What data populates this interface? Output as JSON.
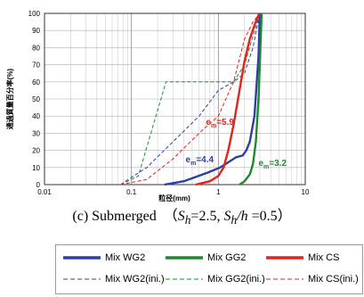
{
  "chart_data": {
    "type": "line",
    "x_scale": "log",
    "xlim": [
      0.01,
      10
    ],
    "ylim": [
      0,
      100
    ],
    "xlabel": "粒径(mm)",
    "ylabel": "通過質量百分率(%)",
    "grid": true,
    "legend_position": "bottom",
    "x_ticks": [
      "0.01",
      "0.1",
      "1",
      "10"
    ],
    "y_ticks": [
      "0",
      "10",
      "20",
      "30",
      "40",
      "50",
      "60",
      "70",
      "80",
      "90",
      "100"
    ],
    "series": [
      {
        "name": "Mix WG2",
        "color": "#2b3fa6",
        "style": "solid",
        "x": [
          0.24,
          0.4,
          0.75,
          1.05,
          1.3,
          1.6,
          1.9,
          2.1,
          2.3,
          2.6,
          2.9,
          3.0
        ],
        "y": [
          0,
          2,
          7,
          10,
          13,
          16,
          17,
          20,
          25,
          40,
          75,
          100
        ]
      },
      {
        "name": "Mix GG2",
        "color": "#1e8a2e",
        "style": "solid",
        "x": [
          1.75,
          2.0,
          2.3,
          2.5,
          2.7,
          2.9,
          3.05,
          3.15
        ],
        "y": [
          0,
          2,
          6,
          12,
          25,
          50,
          80,
          100
        ]
      },
      {
        "name": "Mix CS",
        "color": "#e2231a",
        "style": "solid",
        "x": [
          0.55,
          0.8,
          1.0,
          1.15,
          1.3,
          1.5,
          1.75,
          2.0,
          2.3,
          2.6,
          2.95
        ],
        "y": [
          0,
          2,
          5,
          10,
          20,
          35,
          55,
          72,
          85,
          93,
          100
        ]
      },
      {
        "name": "Mix WG2(ini.)",
        "color": "#2b3fa6",
        "style": "dashed",
        "x": [
          0.075,
          0.15,
          0.3,
          0.6,
          1.0,
          1.5,
          2.0,
          2.5,
          3.0
        ],
        "y": [
          0,
          10,
          25,
          40,
          55,
          60,
          65,
          80,
          100
        ]
      },
      {
        "name": "Mix GG2(ini.)",
        "color": "#1e8a2e",
        "style": "dashed",
        "x": [
          0.075,
          0.12,
          0.25,
          0.5,
          1.0,
          1.5,
          2.0,
          3.0
        ],
        "y": [
          0,
          5,
          60,
          60,
          60,
          60,
          70,
          100
        ]
      },
      {
        "name": "Mix CS(ini.)",
        "color": "#e2231a",
        "style": "dashed",
        "x": [
          0.075,
          0.15,
          0.3,
          0.6,
          1.0,
          1.5,
          2.0,
          2.5,
          3.0
        ],
        "y": [
          0,
          3,
          15,
          30,
          40,
          60,
          85,
          95,
          100
        ]
      }
    ],
    "annotations": [
      {
        "label": "e",
        "sub": "m",
        "value": "=5.9",
        "color": "#e2231a",
        "x": 0.72,
        "y": 35
      },
      {
        "label": "e",
        "sub": "m",
        "value": "=4.4",
        "color": "#2b3fa6",
        "x": 0.42,
        "y": 13
      },
      {
        "label": "e",
        "sub": "m",
        "value": "=3.2",
        "color": "#1e8a2e",
        "x": 2.9,
        "y": 11
      }
    ]
  },
  "caption": {
    "prefix": "(c) Submerged （",
    "s1": "S",
    "s1_sub": "h",
    "mid": "=2.5, ",
    "s2": "S",
    "s2_sub": "h",
    "slash": "/",
    "h": "h",
    "suffix": " =0.5）"
  }
}
